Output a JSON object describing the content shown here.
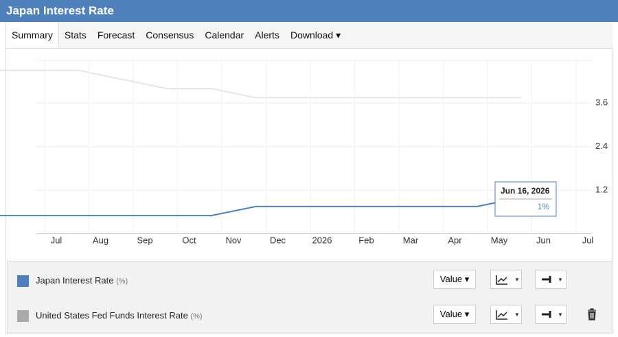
{
  "header": {
    "title": "Japan Interest Rate"
  },
  "tabs": [
    "Summary",
    "Stats",
    "Forecast",
    "Consensus",
    "Calendar",
    "Alerts",
    "Download"
  ],
  "chart_data": {
    "type": "line",
    "x": [
      "2025-06",
      "2025-07",
      "2025-08",
      "2025-09",
      "2025-10",
      "2025-11",
      "2025-12",
      "2026-01",
      "2026-02",
      "2026-03",
      "2026-04",
      "2026-05",
      "2026-06"
    ],
    "series": [
      {
        "name": "Japan Interest Rate",
        "color": "#4e7fbf",
        "values": [
          0.5,
          0.5,
          0.5,
          0.5,
          0.5,
          0.5,
          0.75,
          0.75,
          0.75,
          0.75,
          0.75,
          0.75,
          1
        ]
      },
      {
        "name": "United States Fed Funds Interest Rate",
        "color": "#e6e6e6",
        "values": [
          4.5,
          4.5,
          4.5,
          4.25,
          4,
          4,
          3.75,
          3.75,
          3.75,
          3.75,
          3.75,
          3.75,
          3.75
        ]
      }
    ],
    "unit": "(%)",
    "ylim": [
      0,
      4.7
    ],
    "yticks": [
      1.2,
      2.4,
      3.6
    ],
    "xticks": [
      {
        "value": "2025-07",
        "label": "Jul"
      },
      {
        "value": "2025-08",
        "label": "Aug"
      },
      {
        "value": "2025-09",
        "label": "Sep"
      },
      {
        "value": "2025-10",
        "label": "Oct"
      },
      {
        "value": "2025-11",
        "label": "Nov"
      },
      {
        "value": "2025-12",
        "label": "Dec"
      },
      {
        "value": "2026-01",
        "label": "2026"
      },
      {
        "value": "2026-02",
        "label": "Feb"
      },
      {
        "value": "2026-03",
        "label": "Mar"
      },
      {
        "value": "2026-04",
        "label": "Apr"
      },
      {
        "value": "2026-05",
        "label": "May"
      },
      {
        "value": "2026-06",
        "label": "Jun"
      },
      {
        "value": "2026-07",
        "label": "Jul"
      }
    ],
    "grid": true,
    "tooltip": {
      "title": "Jun 16, 2026",
      "label": "1%"
    }
  },
  "controls": {
    "value_button": "Value"
  }
}
